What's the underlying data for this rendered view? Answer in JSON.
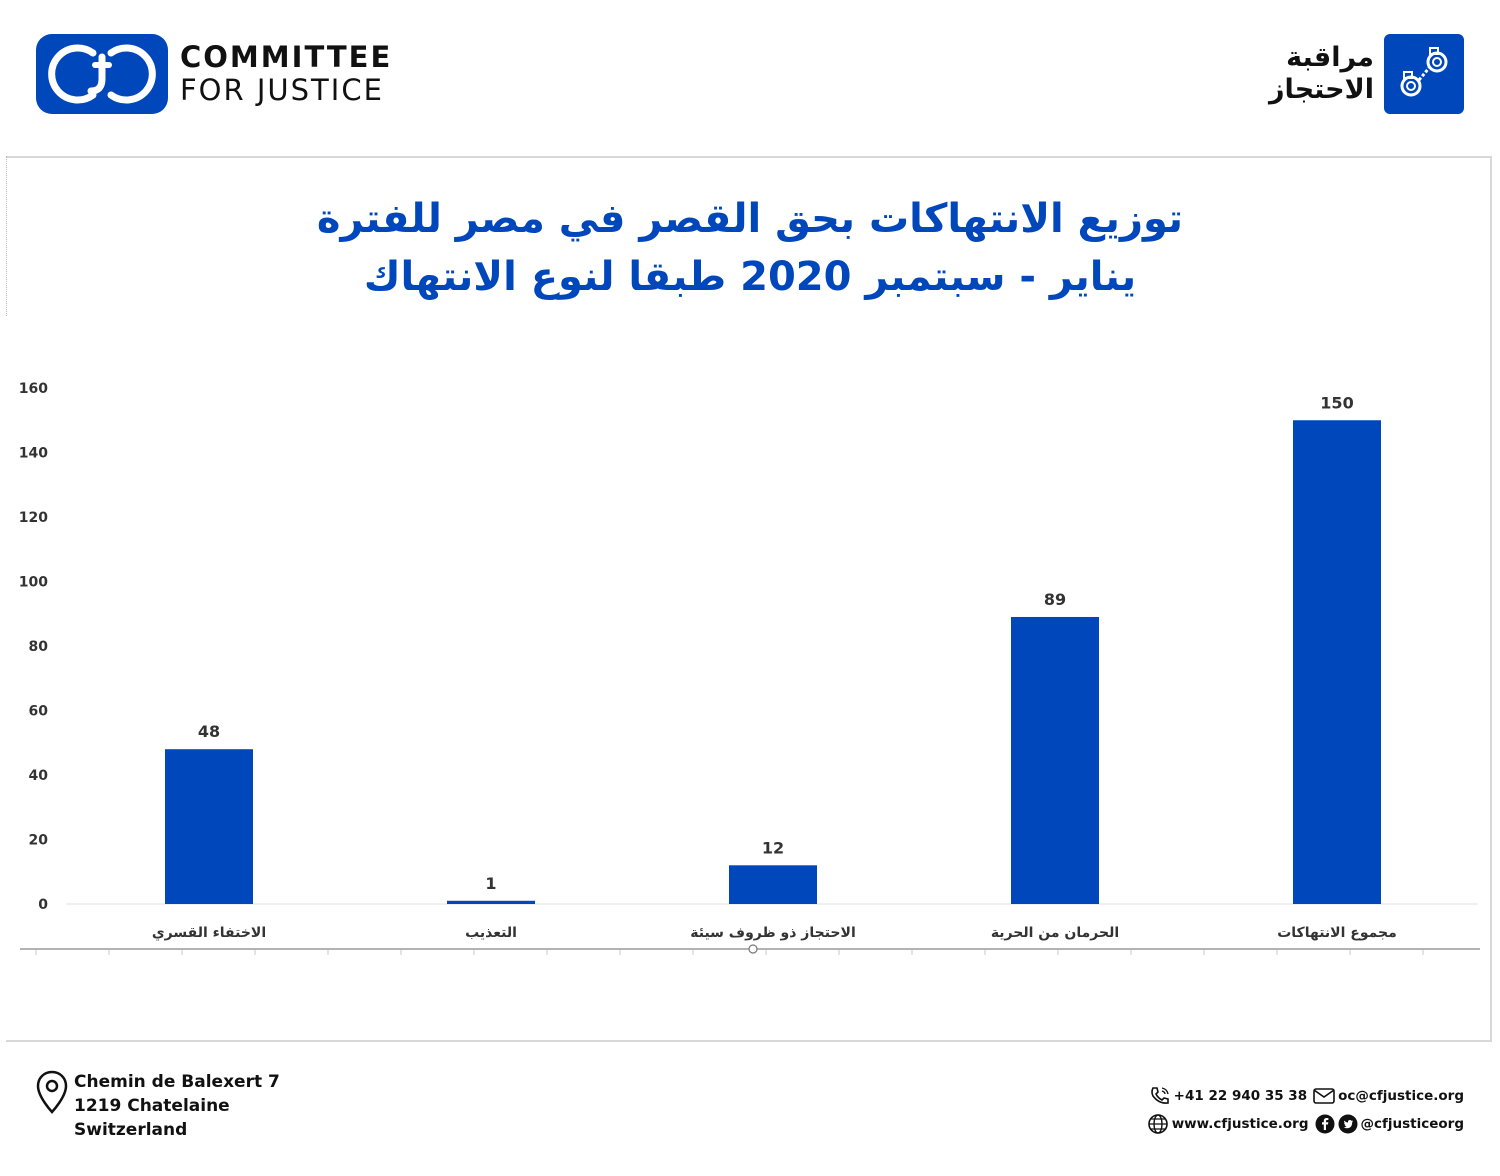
{
  "header": {
    "org_name_line1": "COMMITTEE",
    "org_name_line2": "FOR JUSTICE",
    "monitor_line1": "مراقبة",
    "monitor_line2": "الاحتجاز"
  },
  "chart_data": {
    "type": "bar",
    "title_line1": "توزيع الانتهاكات بحق القصر في مصر للفترة",
    "title_line2": "يناير - سبتمبر 2020 طبقا لنوع الانتهاك",
    "categories": [
      "الاختفاء القسري",
      "التعذيب",
      "الاحتجاز ذو ظروف سيئة",
      "الحرمان من الحرية",
      "مجموع الانتهاكات"
    ],
    "values": [
      48,
      1,
      12,
      89,
      150
    ],
    "ylim": [
      0,
      160
    ],
    "yticks": [
      "0",
      "20",
      "40",
      "60",
      "80",
      "100",
      "120",
      "140",
      "160"
    ],
    "bar_color": "#0047BB",
    "grid": false,
    "xlabel": "",
    "ylabel": ""
  },
  "footer": {
    "address": [
      "Chemin de Balexert 7",
      "1219 Chatelaine",
      "Switzerland"
    ],
    "phone": "+41 22 940 35 38",
    "email": "oc@cfjustice.org",
    "website": "www.cfjustice.org",
    "social": "@cfjusticeorg",
    "icons": [
      "location-pin-icon",
      "phone-icon",
      "envelope-icon",
      "globe-icon",
      "facebook-icon",
      "twitter-icon"
    ]
  }
}
